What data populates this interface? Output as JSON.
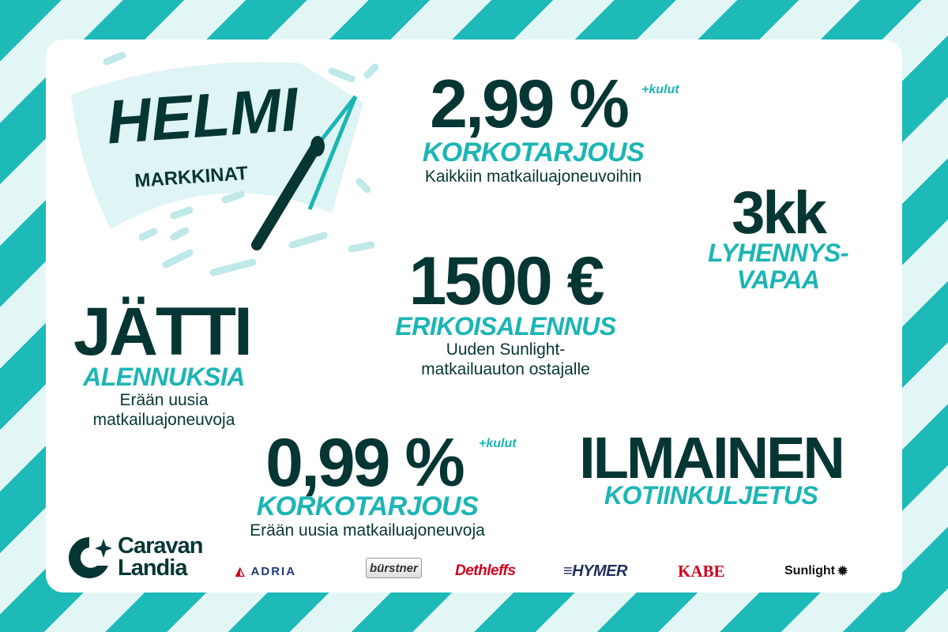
{
  "colors": {
    "dark": "#063634",
    "teal": "#1cb5b4",
    "stripe_light": "#e3f6f6"
  },
  "logo": {
    "title": "HELMI",
    "subtitle": "MARKKINAT"
  },
  "offer1": {
    "value": "2,99 %",
    "suffix": "+kulut",
    "label": "KORKOTARJOUS",
    "desc": "Kaikkiin matkailuajoneuvoihin"
  },
  "offer2": {
    "value": "3kk",
    "label1": "LYHENNYS-",
    "label2": "VAPAA"
  },
  "offer3": {
    "value": "1500 €",
    "label": "ERIKOISALENNUS",
    "desc1": "Uuden Sunlight-",
    "desc2": "matkailuauton ostajalle"
  },
  "offer4": {
    "value": "JÄTTI",
    "label": "ALENNUKSIA",
    "desc1": "Erään uusia",
    "desc2": "matkailuajoneuvoja"
  },
  "offer5": {
    "value": "0,99 %",
    "suffix": "+kulut",
    "label": "KORKOTARJOUS",
    "desc": "Erään uusia matkailuajoneuvoja"
  },
  "offer6": {
    "value": "ILMAINEN",
    "label": "KOTIINKULJETUS"
  },
  "company": {
    "line1": "Caravan",
    "line2": "Landia"
  },
  "brands": [
    "ADRIA",
    "bürstner",
    "Dethleffs",
    "HYMER",
    "KABE",
    "Sunlight"
  ]
}
